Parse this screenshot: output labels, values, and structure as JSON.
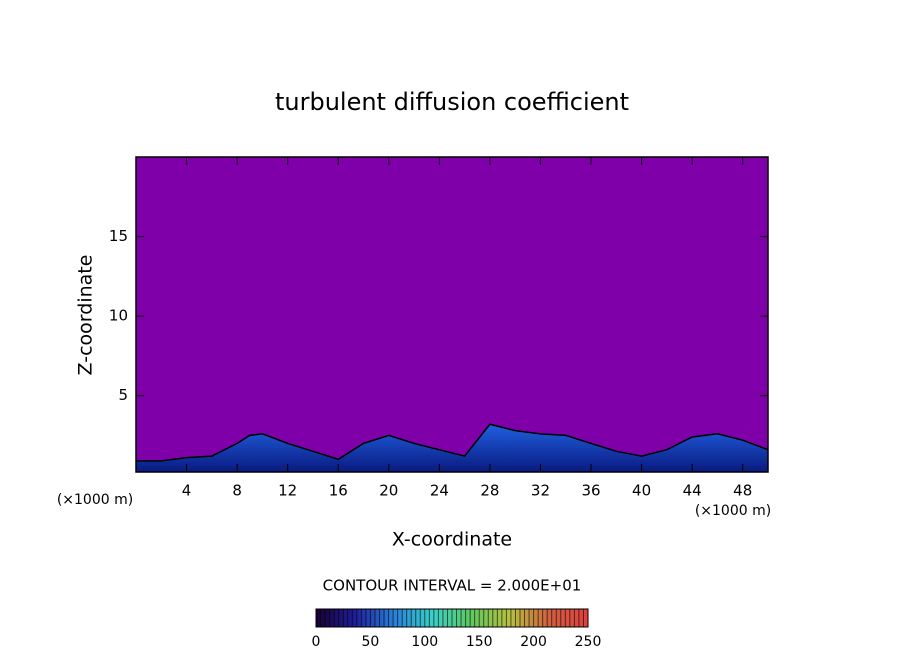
{
  "chart_data": {
    "type": "contour",
    "title": "turbulent diffusion coefficient",
    "x_label": "X-coordinate",
    "y_label": "Z-coordinate",
    "x_unit_label": "(×1000 m)",
    "y_unit_label": "(×1000 m)",
    "x": [
      0,
      2,
      4,
      6,
      8,
      9,
      10,
      12,
      14,
      16,
      18,
      20,
      22,
      24,
      26,
      28,
      30,
      32,
      34,
      36,
      38,
      40,
      42,
      44,
      46,
      48,
      50
    ],
    "values": [
      0.9,
      0.9,
      1.1,
      1.2,
      2.0,
      2.5,
      2.6,
      2.0,
      1.5,
      1.0,
      2.0,
      2.5,
      2.0,
      1.6,
      1.2,
      3.2,
      2.8,
      2.6,
      2.5,
      2.0,
      1.5,
      1.2,
      1.6,
      2.4,
      2.6,
      2.2,
      1.6
    ],
    "background_color": "#7f00a8",
    "color": "#1a3fd6",
    "xlim": [
      0,
      50
    ],
    "xticks": [
      4,
      8,
      12,
      16,
      20,
      24,
      28,
      32,
      36,
      40,
      44,
      48
    ],
    "ylim": [
      0.2,
      20
    ],
    "yticks": [
      5,
      10,
      15
    ],
    "contour_interval_label": "CONTOUR INTERVAL = 2.000E+01",
    "colorbar": {
      "lim": [
        0,
        250
      ],
      "ticks": [
        0,
        50,
        100,
        150,
        200,
        250
      ],
      "colormap": [
        "#1a0030",
        "#1e1e9a",
        "#2a7fd8",
        "#3ad0c8",
        "#60c860",
        "#b8c040",
        "#d06040",
        "#e04040"
      ]
    }
  }
}
